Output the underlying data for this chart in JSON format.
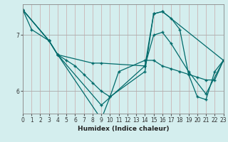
{
  "xlabel": "Humidex (Indice chaleur)",
  "bg_color": "#d4eeee",
  "grid_color_major": "#aaaaaa",
  "grid_color_minor": "#c8e4e4",
  "line_color": "#006b6b",
  "xlim": [
    0,
    23
  ],
  "ylim": [
    5.6,
    7.55
  ],
  "yticks": [
    6,
    7
  ],
  "xticks": [
    0,
    1,
    2,
    3,
    4,
    5,
    6,
    7,
    8,
    9,
    10,
    11,
    12,
    13,
    14,
    15,
    16,
    17,
    18,
    19,
    20,
    21,
    22,
    23
  ],
  "lines": [
    [
      [
        0,
        7.45
      ],
      [
        1,
        7.1
      ],
      [
        3,
        6.9
      ],
      [
        4,
        6.65
      ],
      [
        5,
        6.55
      ],
      [
        6,
        6.45
      ],
      [
        7,
        6.3
      ],
      [
        8,
        6.15
      ],
      [
        9,
        6.0
      ],
      [
        10,
        5.9
      ],
      [
        11,
        6.35
      ],
      [
        14,
        6.55
      ],
      [
        15,
        6.55
      ],
      [
        16,
        6.45
      ],
      [
        17,
        6.4
      ],
      [
        18,
        6.35
      ],
      [
        19,
        6.3
      ],
      [
        20,
        6.25
      ],
      [
        21,
        6.2
      ],
      [
        22,
        6.2
      ],
      [
        23,
        6.55
      ]
    ],
    [
      [
        0,
        7.45
      ],
      [
        3,
        6.9
      ],
      [
        4,
        6.65
      ],
      [
        9,
        5.75
      ],
      [
        14,
        6.45
      ],
      [
        15,
        7.0
      ],
      [
        16,
        7.05
      ],
      [
        17,
        6.85
      ],
      [
        19,
        6.35
      ],
      [
        21,
        5.95
      ],
      [
        23,
        6.55
      ]
    ],
    [
      [
        0,
        7.45
      ],
      [
        3,
        6.9
      ],
      [
        4,
        6.65
      ],
      [
        9,
        5.5
      ],
      [
        10,
        5.9
      ],
      [
        14,
        6.35
      ],
      [
        15,
        7.38
      ],
      [
        16,
        7.42
      ],
      [
        17,
        7.3
      ],
      [
        18,
        7.1
      ],
      [
        19,
        6.3
      ],
      [
        20,
        5.9
      ],
      [
        21,
        5.85
      ],
      [
        22,
        6.35
      ],
      [
        23,
        6.55
      ]
    ],
    [
      [
        0,
        7.45
      ],
      [
        3,
        6.9
      ],
      [
        4,
        6.65
      ],
      [
        8,
        6.5
      ],
      [
        9,
        6.5
      ],
      [
        14,
        6.45
      ],
      [
        15,
        7.38
      ],
      [
        16,
        7.42
      ],
      [
        23,
        6.55
      ]
    ]
  ]
}
